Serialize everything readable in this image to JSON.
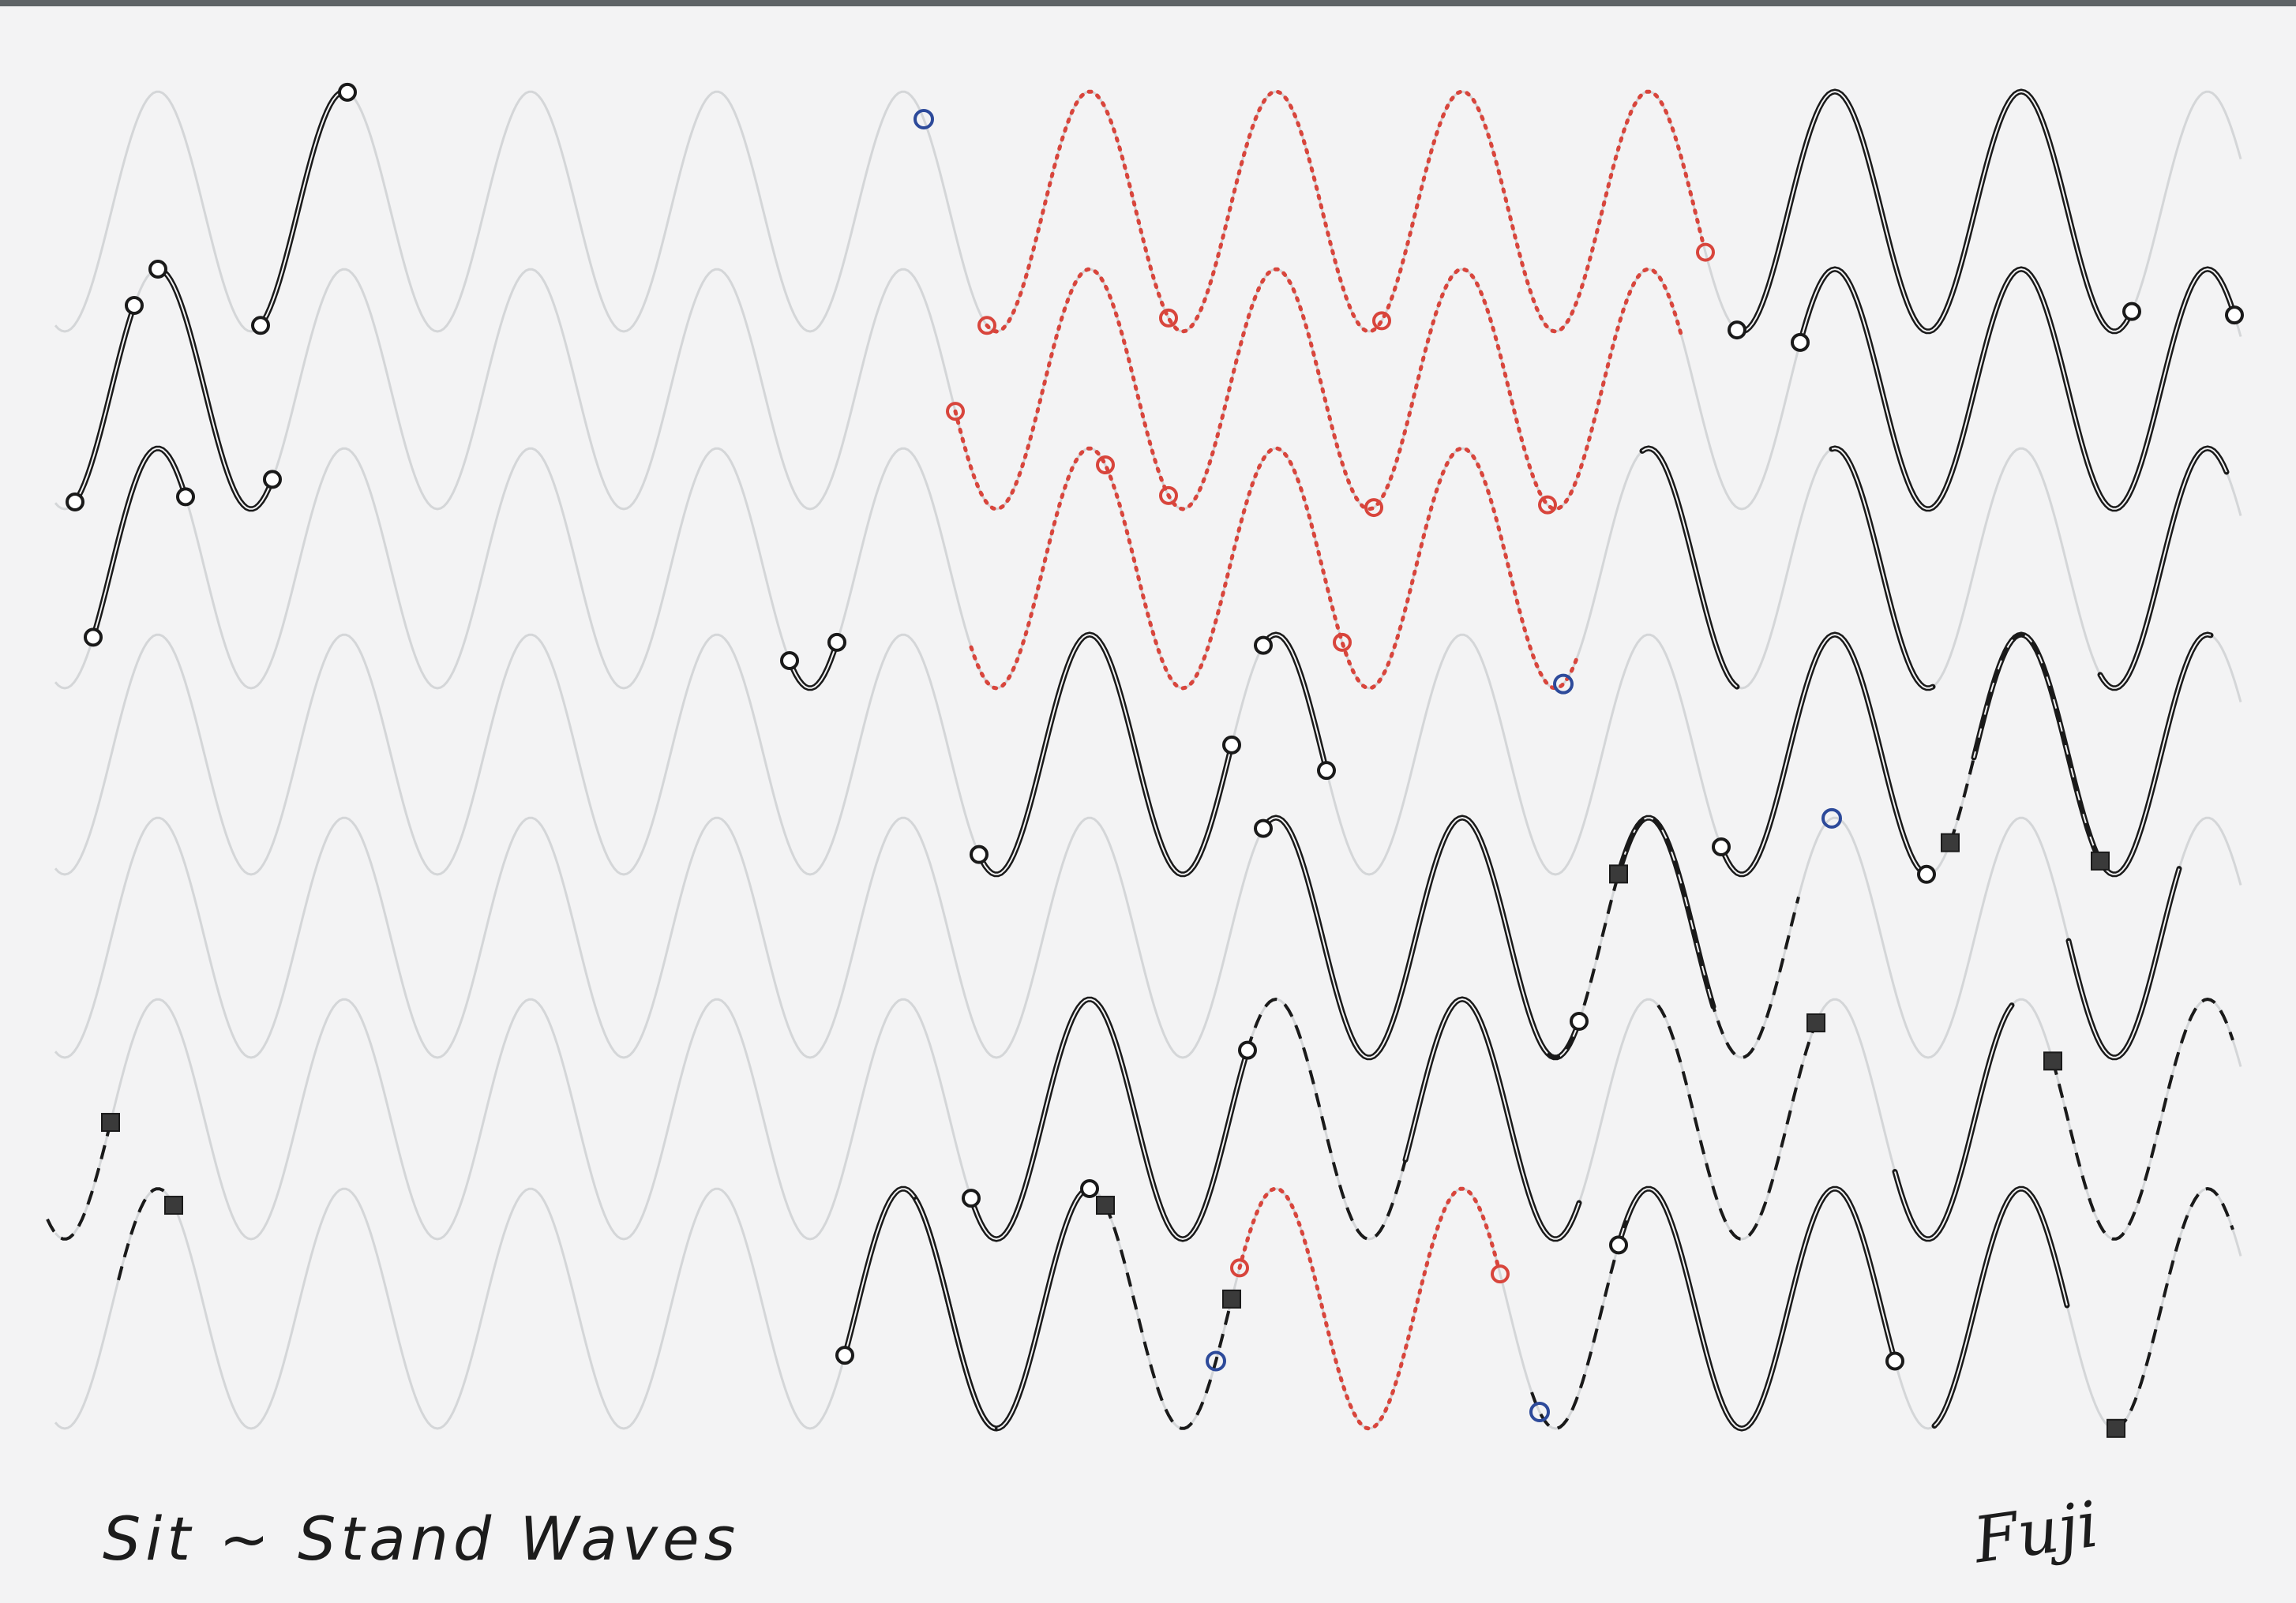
{
  "artwork": {
    "caption": "Sit ~ Stand Waves",
    "signature": "Fuji",
    "colors": {
      "paper": "#f3f3f4",
      "guide_pencil": "#d4d6d8",
      "ink_black": "#1a1a1a",
      "ink_red": "#d8453c",
      "ink_blue": "#2d4a9a"
    }
  }
}
